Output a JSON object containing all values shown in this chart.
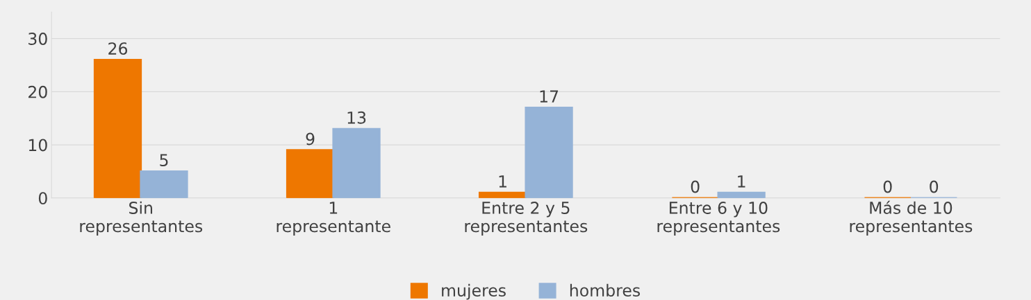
{
  "chart_data": {
    "type": "bar",
    "categories": [
      "Sin\nrepresentantes",
      "1\nrepresentante",
      "Entre 2 y 5\nrepresentantes",
      "Entre 6 y 10\nrepresentantes",
      "Más de 10\nrepresentantes"
    ],
    "series": [
      {
        "name": "mujeres",
        "color": "#ee7700",
        "values": [
          26,
          9,
          1,
          0,
          0
        ]
      },
      {
        "name": "hombres",
        "color": "#95b3d7",
        "values": [
          5,
          13,
          17,
          1,
          0
        ]
      }
    ],
    "ylim": [
      0,
      35
    ],
    "yticks": [
      0,
      10,
      20,
      30
    ],
    "grid": "y",
    "legend": "bottom",
    "data_labels": true
  }
}
